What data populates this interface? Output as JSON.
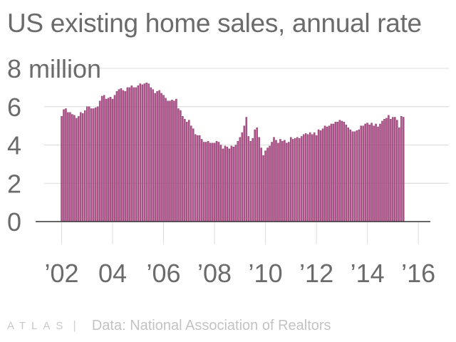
{
  "title": "US existing home sales, annual rate",
  "footer": {
    "brand": "ATLAS",
    "separator": "|",
    "source": "Data: National Association of Realtors"
  },
  "colors": {
    "bar": "#b5558f",
    "bar_stroke": "#7a2e5e",
    "grid": "#dcdcdc",
    "axis": "#333333",
    "text": "#6b6b6b"
  },
  "chart_data": {
    "type": "bar",
    "x_label_unit": "monthly",
    "ylim": [
      0,
      8
    ],
    "y_ticks": [
      0,
      2,
      4,
      6,
      8
    ],
    "y_tick_labels": [
      "0",
      "2",
      "4",
      "6",
      "8 million"
    ],
    "grid": true,
    "x_tick_labels": [
      {
        "label": "’02",
        "month_index": 0
      },
      {
        "label": "04",
        "month_index": 24
      },
      {
        "label": "’06",
        "month_index": 48
      },
      {
        "label": "’08",
        "month_index": 72
      },
      {
        "label": "’10",
        "month_index": 96
      },
      {
        "label": "’12",
        "month_index": 120
      },
      {
        "label": "’14",
        "month_index": 144
      },
      {
        "label": "’16",
        "month_index": 168
      }
    ],
    "start": "2002-01",
    "values": [
      5.5,
      5.85,
      5.9,
      5.7,
      5.7,
      5.6,
      5.55,
      5.4,
      5.5,
      5.7,
      5.65,
      5.8,
      6.0,
      6.0,
      5.9,
      5.9,
      5.95,
      6.0,
      6.3,
      6.55,
      6.6,
      6.4,
      6.45,
      6.5,
      6.4,
      6.6,
      6.8,
      6.9,
      6.95,
      6.85,
      6.8,
      7.0,
      7.0,
      7.1,
      7.0,
      7.0,
      7.1,
      7.2,
      7.15,
      7.2,
      7.25,
      7.2,
      7.0,
      6.9,
      6.7,
      6.8,
      6.85,
      6.7,
      6.6,
      6.45,
      6.3,
      6.3,
      6.35,
      6.3,
      6.4,
      5.9,
      5.8,
      5.5,
      5.35,
      5.2,
      5.3,
      5.0,
      4.85,
      4.55,
      4.5,
      4.5,
      4.3,
      4.15,
      4.15,
      4.2,
      4.1,
      4.1,
      4.1,
      4.2,
      4.15,
      4.0,
      3.8,
      3.95,
      3.9,
      3.8,
      3.95,
      3.9,
      4.0,
      4.2,
      4.4,
      4.65,
      5.0,
      5.45,
      4.45,
      4.2,
      4.35,
      4.8,
      4.9,
      4.4,
      3.85,
      3.45,
      3.7,
      3.85,
      3.95,
      4.15,
      4.4,
      4.25,
      4.1,
      4.3,
      4.2,
      4.25,
      4.1,
      4.15,
      4.4,
      4.3,
      4.35,
      4.4,
      4.35,
      4.45,
      4.55,
      4.6,
      4.55,
      4.65,
      4.55,
      4.65,
      4.5,
      4.8,
      4.75,
      4.85,
      5.0,
      4.95,
      5.0,
      5.1,
      5.1,
      5.2,
      5.2,
      5.3,
      5.25,
      5.2,
      5.05,
      4.9,
      4.8,
      4.7,
      4.7,
      4.75,
      4.8,
      5.0,
      5.0,
      5.1,
      5.15,
      5.05,
      5.15,
      5.0,
      5.1,
      4.95,
      5.1,
      5.25,
      5.35,
      5.4,
      5.55,
      5.35,
      5.45,
      5.45,
      5.3,
      4.9,
      5.5,
      5.45
    ]
  }
}
